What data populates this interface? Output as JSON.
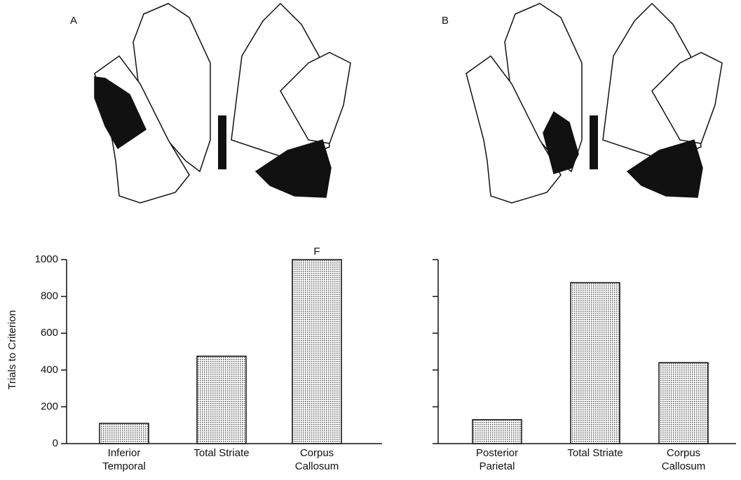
{
  "chart_data": [
    {
      "type": "bar",
      "title": "A",
      "ylabel": "Trials to Criterion",
      "categories": [
        "Inferior Temporal",
        "Total Striate",
        "Corpus Callosum"
      ],
      "values": [
        110,
        475,
        1000
      ],
      "annotation": "F",
      "color": "#c4c4c4",
      "ylim": [
        0,
        1000
      ],
      "yticks": [
        0,
        200,
        400,
        600,
        800,
        1000
      ],
      "tick_labels": true
    },
    {
      "type": "bar",
      "title": "B",
      "categories": [
        "Posterior Parietal",
        "Total Striate",
        "Corpus Callosum"
      ],
      "values": [
        130,
        875,
        440
      ],
      "color": "#c4c4c4",
      "ylim": [
        0,
        1000
      ],
      "yticks": [
        0,
        200,
        400,
        600,
        800,
        1000
      ],
      "tick_labels": false
    }
  ]
}
